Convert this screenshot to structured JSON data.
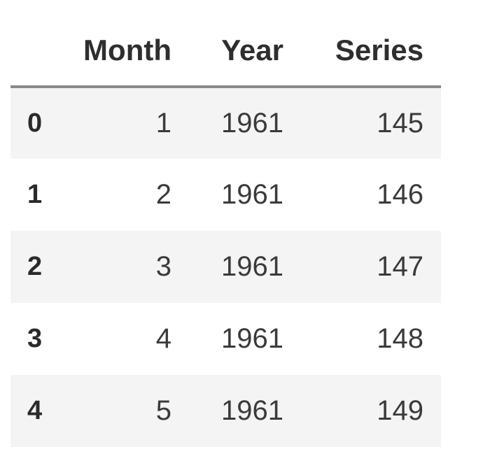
{
  "table": {
    "columns": [
      "Month",
      "Year",
      "Series"
    ],
    "rows": [
      {
        "index": "0",
        "month": "1",
        "year": "1961",
        "series": "145"
      },
      {
        "index": "1",
        "month": "2",
        "year": "1961",
        "series": "146"
      },
      {
        "index": "2",
        "month": "3",
        "year": "1961",
        "series": "147"
      },
      {
        "index": "3",
        "month": "4",
        "year": "1961",
        "series": "148"
      },
      {
        "index": "4",
        "month": "5",
        "year": "1961",
        "series": "149"
      }
    ]
  }
}
